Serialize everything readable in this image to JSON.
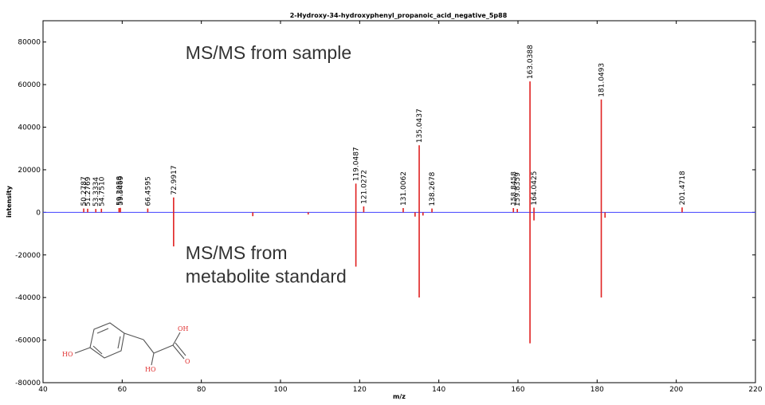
{
  "chart_data": {
    "type": "bar",
    "title": "2-Hydroxy-34-hydroxyphenyl_propanoic_acid_negative_5p88",
    "xlabel": "m/z",
    "ylabel": "intensity",
    "xlim": [
      40,
      220
    ],
    "ylim": [
      -80000,
      90000
    ],
    "xticks": [
      40,
      60,
      80,
      100,
      120,
      140,
      160,
      180,
      200,
      220
    ],
    "yticks": [
      -80000,
      -60000,
      -40000,
      -20000,
      0,
      20000,
      40000,
      60000,
      80000
    ],
    "grid": false,
    "baseline_color": "#4040ff",
    "series": [
      {
        "name": "MS/MS from sample",
        "color": "#e02020",
        "peaks": [
          {
            "x": 50.2787,
            "y": 1800,
            "label": "50.2787"
          },
          {
            "x": 51.2769,
            "y": 1700,
            "label": "51.2769"
          },
          {
            "x": 53.3334,
            "y": 1600,
            "label": "53.3334"
          },
          {
            "x": 54.751,
            "y": 1700,
            "label": "54.7510"
          },
          {
            "x": 59.2058,
            "y": 2000,
            "label": "59.2058"
          },
          {
            "x": 59.5469,
            "y": 2100,
            "label": "59.5469"
          },
          {
            "x": 66.4595,
            "y": 1800,
            "label": "66.4595"
          },
          {
            "x": 72.9917,
            "y": 7000,
            "label": "72.9917"
          },
          {
            "x": 119.0487,
            "y": 13500,
            "label": "119.0487"
          },
          {
            "x": 121.0272,
            "y": 2800,
            "label": "121.0272"
          },
          {
            "x": 131.0062,
            "y": 2000,
            "label": "131.0062"
          },
          {
            "x": 135.0437,
            "y": 31500,
            "label": "135.0437"
          },
          {
            "x": 138.2678,
            "y": 1800,
            "label": "138.2678"
          },
          {
            "x": 158.8458,
            "y": 2000,
            "label": "158.8458"
          },
          {
            "x": 159.8359,
            "y": 1600,
            "label": "159.8359"
          },
          {
            "x": 163.0388,
            "y": 61500,
            "label": "163.0388"
          },
          {
            "x": 164.0425,
            "y": 2200,
            "label": "164.0425"
          },
          {
            "x": 181.0493,
            "y": 53000,
            "label": "181.0493"
          },
          {
            "x": 201.4718,
            "y": 2300,
            "label": "201.4718"
          }
        ]
      },
      {
        "name": "MS/MS from metabolite standard",
        "color": "#e02020",
        "peaks": [
          {
            "x": 72.9917,
            "y": -16000
          },
          {
            "x": 93.0,
            "y": -1800
          },
          {
            "x": 107.0,
            "y": -1000
          },
          {
            "x": 119.0487,
            "y": -25500
          },
          {
            "x": 134.0,
            "y": -2000
          },
          {
            "x": 135.0437,
            "y": -40000
          },
          {
            "x": 136.0,
            "y": -1500
          },
          {
            "x": 163.0388,
            "y": -61500
          },
          {
            "x": 164.0425,
            "y": -3800
          },
          {
            "x": 181.0493,
            "y": -40000
          },
          {
            "x": 182.0,
            "y": -2500
          }
        ]
      }
    ],
    "annotations": [
      {
        "text": "MS/MS from sample",
        "x": 76,
        "y": 72000
      },
      {
        "text": "MS/MS from",
        "x": 76,
        "y": -22000
      },
      {
        "text": "metabolite standard",
        "x": 76,
        "y": -33000
      }
    ],
    "structure_labels": {
      "ho_left": "HO",
      "oh_top": "OH",
      "o_carbonyl": "O",
      "ho_bottom": "HO"
    }
  }
}
